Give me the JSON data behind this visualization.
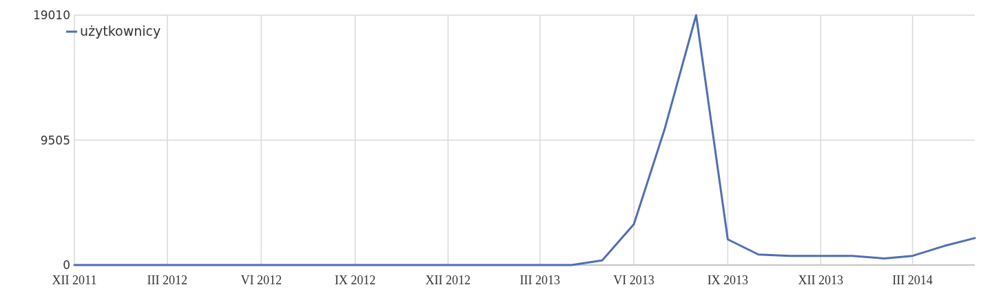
{
  "chart_data": {
    "type": "line",
    "x": [
      "2011-12",
      "2012-01",
      "2012-02",
      "2012-03",
      "2012-04",
      "2012-05",
      "2012-06",
      "2012-07",
      "2012-08",
      "2012-09",
      "2012-10",
      "2012-11",
      "2012-12",
      "2013-01",
      "2013-02",
      "2013-03",
      "2013-04",
      "2013-05",
      "2013-06",
      "2013-07",
      "2013-08",
      "2013-09",
      "2013-10",
      "2013-11",
      "2013-12",
      "2014-01",
      "2014-02",
      "2014-03",
      "2014-04",
      "2014-05"
    ],
    "series": [
      {
        "name": "użytkownicy",
        "color": "#4f6fb3",
        "values": [
          0,
          0,
          0,
          0,
          0,
          0,
          0,
          0,
          0,
          0,
          0,
          0,
          0,
          0,
          0,
          0,
          0,
          350,
          3100,
          10300,
          19010,
          1950,
          800,
          700,
          700,
          700,
          500,
          700,
          1450,
          2050
        ]
      }
    ],
    "xlim": [
      "2011-12",
      "2014-05"
    ],
    "xticks": [
      {
        "value": "2011-12",
        "label": "XII 2011"
      },
      {
        "value": "2012-03",
        "label": "III 2012"
      },
      {
        "value": "2012-06",
        "label": "VI 2012"
      },
      {
        "value": "2012-09",
        "label": "IX 2012"
      },
      {
        "value": "2012-12",
        "label": "XII 2012"
      },
      {
        "value": "2013-03",
        "label": "III 2013"
      },
      {
        "value": "2013-06",
        "label": "VI 2013"
      },
      {
        "value": "2013-09",
        "label": "IX 2013"
      },
      {
        "value": "2013-12",
        "label": "XII 2013"
      },
      {
        "value": "2014-03",
        "label": "III 2014"
      }
    ],
    "ylim": [
      0,
      19010
    ],
    "yticks": [
      0,
      9505,
      19010
    ],
    "grid": true,
    "legend": "top left",
    "marker": "none",
    "line_style": "solid"
  }
}
